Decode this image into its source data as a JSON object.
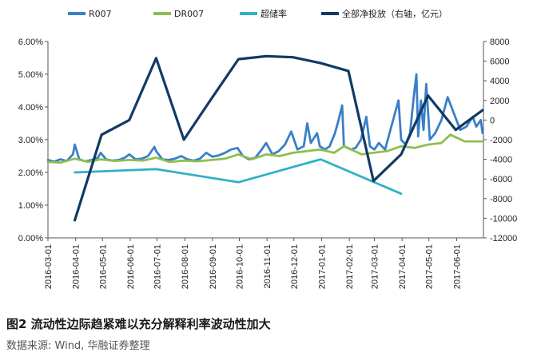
{
  "figure": {
    "caption": "图2  流动性边际趋紧难以充分解释利率波动性加大",
    "source": "数据来源: Wind, 华融证券整理"
  },
  "chart_data": {
    "type": "line",
    "legend_position": "top",
    "grid": false,
    "x_ticks": [
      "2016-03-01",
      "2016-04-01",
      "2016-05-01",
      "2016-06-01",
      "2016-07-01",
      "2016-08-01",
      "2016-09-01",
      "2016-10-01",
      "2016-11-01",
      "2016-12-01",
      "2017-01-01",
      "2017-02-01",
      "2017-03-01",
      "2017-04-01",
      "2017-05-01",
      "2017-06-01"
    ],
    "x_range": [
      "2016-03-01",
      "2017-07-01"
    ],
    "y_left": {
      "range": [
        0,
        6
      ],
      "ticks": [
        "0.00%",
        "1.00%",
        "2.00%",
        "3.00%",
        "4.00%",
        "5.00%",
        "6.00%"
      ]
    },
    "y_right": {
      "range": [
        -12000,
        8000
      ],
      "ticks": [
        "-12000",
        "-10000",
        "-8000",
        "-6000",
        "-4000",
        "-2000",
        "0",
        "2000",
        "4000",
        "6000",
        "8000"
      ]
    },
    "series": [
      {
        "name": "R007",
        "color": "#3b7fc8",
        "axis": "left",
        "points": [
          [
            "2016-03-01",
            2.38
          ],
          [
            "2016-03-08",
            2.33
          ],
          [
            "2016-03-15",
            2.4
          ],
          [
            "2016-03-22",
            2.35
          ],
          [
            "2016-03-29",
            2.55
          ],
          [
            "2016-03-31",
            2.85
          ],
          [
            "2016-04-05",
            2.4
          ],
          [
            "2016-04-12",
            2.34
          ],
          [
            "2016-04-19",
            2.38
          ],
          [
            "2016-04-26",
            2.45
          ],
          [
            "2016-04-29",
            2.6
          ],
          [
            "2016-05-05",
            2.4
          ],
          [
            "2016-05-12",
            2.36
          ],
          [
            "2016-05-19",
            2.38
          ],
          [
            "2016-05-26",
            2.45
          ],
          [
            "2016-05-31",
            2.55
          ],
          [
            "2016-06-07",
            2.4
          ],
          [
            "2016-06-14",
            2.42
          ],
          [
            "2016-06-21",
            2.5
          ],
          [
            "2016-06-28",
            2.78
          ],
          [
            "2016-06-30",
            2.65
          ],
          [
            "2016-07-07",
            2.4
          ],
          [
            "2016-07-14",
            2.38
          ],
          [
            "2016-07-21",
            2.42
          ],
          [
            "2016-07-28",
            2.5
          ],
          [
            "2016-08-04",
            2.4
          ],
          [
            "2016-08-11",
            2.36
          ],
          [
            "2016-08-18",
            2.42
          ],
          [
            "2016-08-25",
            2.6
          ],
          [
            "2016-09-01",
            2.48
          ],
          [
            "2016-09-08",
            2.52
          ],
          [
            "2016-09-15",
            2.6
          ],
          [
            "2016-09-22",
            2.7
          ],
          [
            "2016-09-29",
            2.75
          ],
          [
            "2016-10-05",
            2.5
          ],
          [
            "2016-10-12",
            2.4
          ],
          [
            "2016-10-19",
            2.45
          ],
          [
            "2016-10-26",
            2.7
          ],
          [
            "2016-10-31",
            2.9
          ],
          [
            "2016-11-07",
            2.55
          ],
          [
            "2016-11-14",
            2.65
          ],
          [
            "2016-11-21",
            2.85
          ],
          [
            "2016-11-28",
            3.25
          ],
          [
            "2016-12-05",
            2.7
          ],
          [
            "2016-12-12",
            2.8
          ],
          [
            "2016-12-16",
            3.5
          ],
          [
            "2016-12-20",
            2.9
          ],
          [
            "2016-12-27",
            3.2
          ],
          [
            "2016-12-30",
            2.8
          ],
          [
            "2017-01-05",
            2.7
          ],
          [
            "2017-01-10",
            2.8
          ],
          [
            "2017-01-16",
            3.2
          ],
          [
            "2017-01-20",
            3.6
          ],
          [
            "2017-01-24",
            4.05
          ],
          [
            "2017-01-26",
            2.8
          ],
          [
            "2017-02-03",
            2.7
          ],
          [
            "2017-02-08",
            2.75
          ],
          [
            "2017-02-14",
            3.0
          ],
          [
            "2017-02-20",
            3.7
          ],
          [
            "2017-02-24",
            2.8
          ],
          [
            "2017-03-01",
            2.7
          ],
          [
            "2017-03-06",
            2.9
          ],
          [
            "2017-03-13",
            2.7
          ],
          [
            "2017-03-20",
            3.4
          ],
          [
            "2017-03-24",
            3.8
          ],
          [
            "2017-03-28",
            4.2
          ],
          [
            "2017-03-31",
            3.0
          ],
          [
            "2017-04-05",
            2.85
          ],
          [
            "2017-04-10",
            3.2
          ],
          [
            "2017-04-14",
            4.3
          ],
          [
            "2017-04-17",
            5.0
          ],
          [
            "2017-04-19",
            3.1
          ],
          [
            "2017-04-22",
            4.2
          ],
          [
            "2017-04-25",
            3.3
          ],
          [
            "2017-04-28",
            4.7
          ],
          [
            "2017-05-02",
            3.0
          ],
          [
            "2017-05-08",
            3.2
          ],
          [
            "2017-05-15",
            3.6
          ],
          [
            "2017-05-22",
            4.3
          ],
          [
            "2017-05-29",
            3.8
          ],
          [
            "2017-06-05",
            3.3
          ],
          [
            "2017-06-12",
            3.4
          ],
          [
            "2017-06-19",
            3.7
          ],
          [
            "2017-06-23",
            3.4
          ],
          [
            "2017-06-28",
            3.6
          ],
          [
            "2017-06-30",
            3.2
          ]
        ]
      },
      {
        "name": "DR007",
        "color": "#8dbf4f",
        "axis": "left",
        "points": [
          [
            "2016-03-01",
            2.32
          ],
          [
            "2016-03-15",
            2.3
          ],
          [
            "2016-03-31",
            2.42
          ],
          [
            "2016-04-15",
            2.32
          ],
          [
            "2016-04-29",
            2.4
          ],
          [
            "2016-05-15",
            2.35
          ],
          [
            "2016-05-31",
            2.38
          ],
          [
            "2016-06-15",
            2.36
          ],
          [
            "2016-06-30",
            2.45
          ],
          [
            "2016-07-15",
            2.32
          ],
          [
            "2016-07-31",
            2.36
          ],
          [
            "2016-08-15",
            2.34
          ],
          [
            "2016-08-31",
            2.38
          ],
          [
            "2016-09-15",
            2.42
          ],
          [
            "2016-09-30",
            2.55
          ],
          [
            "2016-10-15",
            2.4
          ],
          [
            "2016-10-31",
            2.55
          ],
          [
            "2016-11-15",
            2.5
          ],
          [
            "2016-11-30",
            2.6
          ],
          [
            "2016-12-15",
            2.65
          ],
          [
            "2016-12-30",
            2.7
          ],
          [
            "2017-01-15",
            2.6
          ],
          [
            "2017-01-26",
            2.8
          ],
          [
            "2017-02-15",
            2.55
          ],
          [
            "2017-02-28",
            2.6
          ],
          [
            "2017-03-15",
            2.65
          ],
          [
            "2017-03-31",
            2.8
          ],
          [
            "2017-04-15",
            2.75
          ],
          [
            "2017-04-30",
            2.85
          ],
          [
            "2017-05-15",
            2.9
          ],
          [
            "2017-05-25",
            3.15
          ],
          [
            "2017-06-10",
            2.95
          ],
          [
            "2017-06-30",
            2.95
          ]
        ]
      },
      {
        "name": "超储率",
        "color": "#2fb1c6",
        "axis": "left",
        "points": [
          [
            "2016-03-31",
            2.0
          ],
          [
            "2016-06-30",
            2.1
          ],
          [
            "2016-09-30",
            1.7
          ],
          [
            "2016-12-31",
            2.4
          ],
          [
            "2017-03-31",
            1.35
          ]
        ]
      },
      {
        "name": "全部净投放（右轴，亿元）",
        "color": "#123a66",
        "axis": "right",
        "points": [
          [
            "2016-03-31",
            -10200
          ],
          [
            "2016-04-30",
            -1500
          ],
          [
            "2016-05-31",
            0
          ],
          [
            "2016-06-30",
            6300
          ],
          [
            "2016-07-31",
            -2000
          ],
          [
            "2016-08-31",
            2200
          ],
          [
            "2016-09-30",
            6200
          ],
          [
            "2016-10-31",
            6500
          ],
          [
            "2016-11-30",
            6400
          ],
          [
            "2016-12-31",
            5800
          ],
          [
            "2017-01-31",
            5000
          ],
          [
            "2017-02-28",
            -6200
          ],
          [
            "2017-03-31",
            -3500
          ],
          [
            "2017-04-30",
            2500
          ],
          [
            "2017-05-31",
            -1000
          ],
          [
            "2017-06-30",
            1000
          ]
        ]
      }
    ]
  }
}
